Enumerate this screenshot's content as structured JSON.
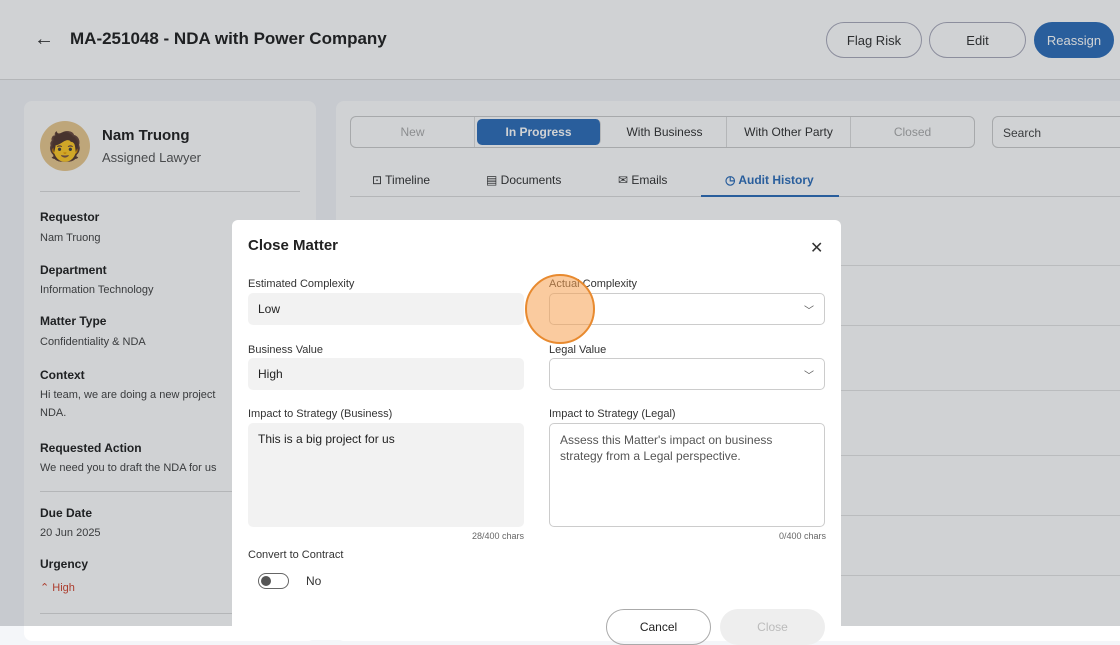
{
  "header": {
    "title": "MA-251048 - NDA with Power Company",
    "buttons": {
      "flag_risk": "Flag Risk",
      "edit": "Edit",
      "reassign": "Reassign"
    },
    "accent": "#2f6fba"
  },
  "lawyer": {
    "name": "Nam Truong",
    "role": "Assigned Lawyer"
  },
  "details": [
    {
      "label": "Requestor",
      "value": "Nam Truong"
    },
    {
      "label": "Department",
      "value": "Information Technology"
    },
    {
      "label": "Matter Type",
      "value": "Confidentiality & NDA"
    },
    {
      "label": "Context",
      "value": "Hi team, we are doing a new project NDA."
    },
    {
      "label": "Requested Action",
      "value": "We need you to draft the NDA for us"
    },
    {
      "label": "Due Date",
      "value": "20 Jun 2025"
    },
    {
      "label": "Urgency",
      "value": "High"
    }
  ],
  "statuses": [
    "New",
    "In Progress",
    "With Business",
    "With Other Party",
    "Closed"
  ],
  "active_status": "In Progress",
  "search_placeholder": "Search",
  "tabs": [
    "Timeline",
    "Documents",
    "Emails",
    "Audit History"
  ],
  "active_tab": "Audit History",
  "modal": {
    "title": "Close Matter",
    "estimated_complexity": {
      "label": "Estimated Complexity",
      "value": "Low"
    },
    "actual_complexity": {
      "label": "Actual Complexity",
      "value": ""
    },
    "business_value": {
      "label": "Business Value",
      "value": "High"
    },
    "legal_value": {
      "label": "Legal Value",
      "value": ""
    },
    "impact_business": {
      "label": "Impact to Strategy (Business)",
      "value": "This is a big project for us",
      "count": "28/400 chars"
    },
    "impact_legal": {
      "label": "Impact to Strategy (Legal)",
      "placeholder": "Assess this Matter's impact on business strategy from a Legal perspective.",
      "count": "0/400 chars"
    },
    "convert": {
      "label": "Convert to Contract",
      "value": "No",
      "on": false
    },
    "cancel": "Cancel",
    "close": "Close"
  }
}
